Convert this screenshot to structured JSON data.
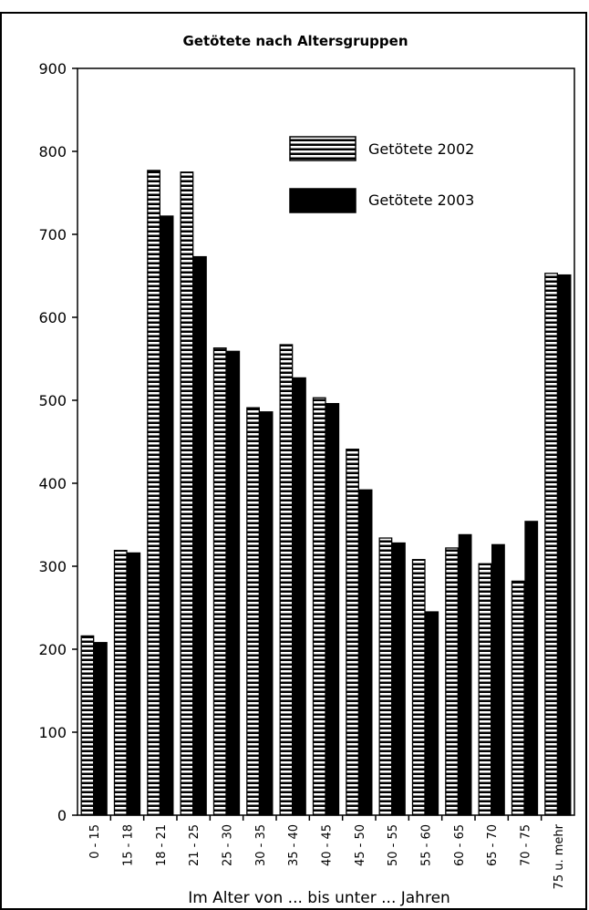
{
  "chart_data": {
    "type": "bar",
    "title": "Getötete nach Altersgruppen",
    "xlabel": "Im Alter von ... bis unter ... Jahren",
    "ylabel": "",
    "ylim": [
      0,
      900
    ],
    "yticks": [
      0,
      100,
      200,
      300,
      400,
      500,
      600,
      700,
      800,
      900
    ],
    "ytick_labels": [
      "0",
      "100",
      "200",
      "300",
      "400",
      "500",
      "600",
      "700",
      "800",
      "900"
    ],
    "grid": false,
    "legend_position": "top-right",
    "categories": [
      "0 - 15",
      "15 - 18",
      "18 - 21",
      "21 - 25",
      "25 - 30",
      "30 - 35",
      "35 - 40",
      "40 - 45",
      "45 - 50",
      "50 - 55",
      "55 - 60",
      "60 - 65",
      "65 - 70",
      "70 - 75",
      "75 u. mehr"
    ],
    "series": [
      {
        "name": "Getötete 2002",
        "pattern": "horizontal-stripes",
        "values": [
          216,
          319,
          777,
          775,
          563,
          491,
          567,
          503,
          441,
          334,
          308,
          322,
          303,
          282,
          653
        ]
      },
      {
        "name": "Getötete 2003",
        "pattern": "solid-black",
        "values": [
          208,
          316,
          722,
          673,
          559,
          486,
          527,
          496,
          392,
          328,
          245,
          338,
          326,
          354,
          651
        ]
      }
    ]
  }
}
